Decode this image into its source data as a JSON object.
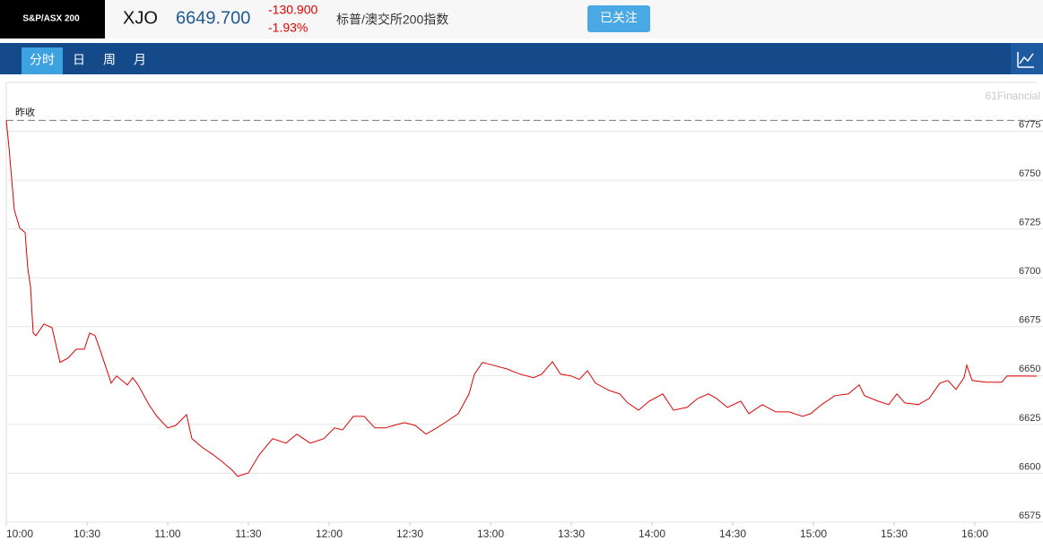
{
  "header": {
    "index_name": "S&P/ASX 200",
    "symbol": "XJO",
    "price": "6649.700",
    "change": "-130.900",
    "change_pct": "-1.93%",
    "description": "标普/澳交所200指数",
    "follow_button": "已关注"
  },
  "tabs": [
    "分时",
    "日",
    "周",
    "月"
  ],
  "chart_data": {
    "type": "line",
    "watermark": "61Financial",
    "annotation": "昨收",
    "prev_close": 6780.6,
    "color": "#e00000",
    "x": [
      "10:00",
      "10:01",
      "10:03",
      "10:05",
      "10:07",
      "10:08",
      "10:09",
      "10:10",
      "10:11",
      "10:14",
      "10:17",
      "10:20",
      "10:23",
      "10:26",
      "10:29",
      "10:31",
      "10:33",
      "10:35",
      "10:39",
      "10:41",
      "10:43",
      "10:45",
      "10:47",
      "10:49",
      "10:53",
      "10:56",
      "11:00",
      "11:03",
      "11:07",
      "11:09",
      "11:13",
      "11:17",
      "11:20",
      "11:24",
      "11:26",
      "11:30",
      "11:34",
      "11:39",
      "11:44",
      "11:48",
      "11:53",
      "11:58",
      "12:02",
      "12:05",
      "12:09",
      "12:13",
      "12:17",
      "12:21",
      "12:24",
      "12:28",
      "12:32",
      "12:36",
      "12:40",
      "12:44",
      "12:48",
      "12:52",
      "12:54",
      "12:57",
      "13:01",
      "13:06",
      "13:11",
      "13:16",
      "13:19",
      "13:23",
      "13:26",
      "13:30",
      "13:33",
      "13:36",
      "13:39",
      "13:44",
      "13:48",
      "13:51",
      "13:55",
      "13:59",
      "14:04",
      "14:08",
      "14:13",
      "14:17",
      "14:21",
      "14:24",
      "14:28",
      "14:33",
      "14:36",
      "14:41",
      "14:46",
      "14:51",
      "14:56",
      "14:59",
      "15:03",
      "15:08",
      "15:13",
      "15:17",
      "15:19",
      "15:24",
      "15:28",
      "15:31",
      "15:34",
      "15:39",
      "15:43",
      "15:47",
      "15:50",
      "15:53",
      "15:56",
      "15:57",
      "15:59",
      "16:04",
      "16:10",
      "16:12",
      "16:23"
    ],
    "values": [
      6780.6,
      6766.7,
      6734.6,
      6725.5,
      6723.2,
      6704.8,
      6695.6,
      6671.8,
      6670.4,
      6676.4,
      6674.5,
      6656.7,
      6659,
      6663.5,
      6663.5,
      6671.8,
      6670.4,
      6662.6,
      6646.1,
      6649.8,
      6647.5,
      6645.2,
      6648.9,
      6645.2,
      6635.1,
      6629.1,
      6623.2,
      6624.5,
      6630,
      6617.7,
      6613.1,
      6609.4,
      6606.2,
      6601.6,
      6598.4,
      6600.2,
      6609.4,
      6617.7,
      6615.4,
      6620,
      6615.4,
      6617.7,
      6623.2,
      6622.2,
      6629.1,
      6629.1,
      6623.2,
      6623.2,
      6624.5,
      6625.9,
      6624.5,
      6620,
      6623.2,
      6626.8,
      6630.5,
      6640.6,
      6650.7,
      6656.7,
      6655.3,
      6653.4,
      6650.7,
      6648.9,
      6650.7,
      6657.1,
      6650.7,
      6649.8,
      6648,
      6652.5,
      6646.1,
      6642.4,
      6640.6,
      6636,
      6632.3,
      6636.9,
      6640.6,
      6632.3,
      6633.7,
      6638.3,
      6640.6,
      6638.3,
      6633.7,
      6636.9,
      6630.5,
      6635.1,
      6631.4,
      6631.4,
      6629.1,
      6630.5,
      6635.1,
      6639.7,
      6640.6,
      6645.2,
      6639.7,
      6636.9,
      6635.1,
      6640.6,
      6636,
      6635.1,
      6638.3,
      6646.1,
      6647.5,
      6642.9,
      6648.9,
      6655.3,
      6647.5,
      6646.6,
      6646.6,
      6649.8,
      6649.7
    ],
    "xlim": [
      "10:00",
      "16:23"
    ],
    "xticks": [
      "10:00",
      "10:30",
      "11:00",
      "11:30",
      "12:00",
      "12:30",
      "13:00",
      "13:30",
      "14:00",
      "14:30",
      "15:00",
      "15:30",
      "16:00"
    ],
    "ylim": [
      6575,
      6800
    ],
    "yticks": [
      6575,
      6600,
      6625,
      6650,
      6675,
      6700,
      6725,
      6750,
      6775
    ],
    "grid": true
  }
}
